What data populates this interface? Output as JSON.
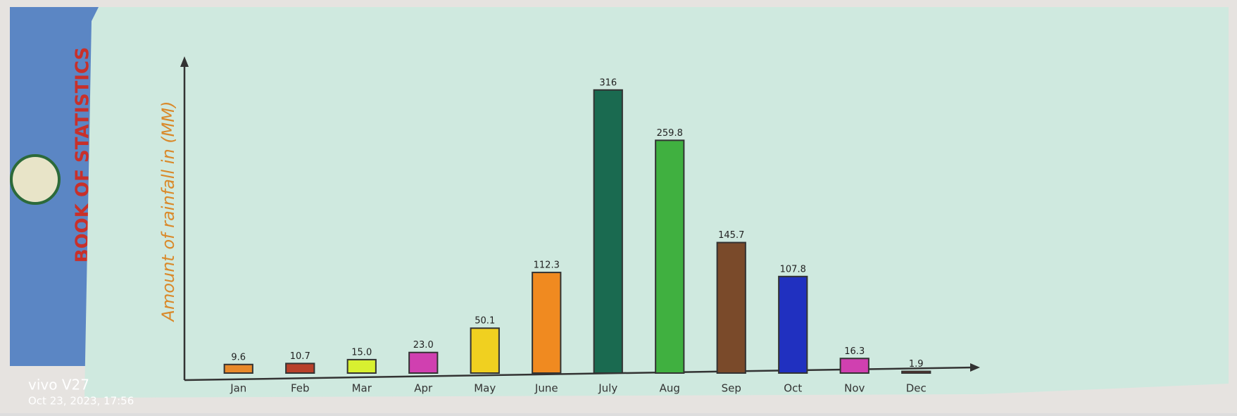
{
  "chart_data": {
    "type": "bar",
    "y_label": "Amount of rainfall in (MM)",
    "categories": [
      "Jan",
      "Feb",
      "Mar",
      "Apr",
      "May",
      "June",
      "July",
      "Aug",
      "Sep",
      "Oct",
      "Nov",
      "Dec"
    ],
    "values": [
      9.6,
      10.7,
      15.0,
      23.0,
      50.1,
      112.3,
      316,
      259.8,
      145.7,
      107.8,
      16.3,
      1.9
    ],
    "value_labels": [
      "9.6",
      "10.7",
      "15.0",
      "23.0",
      "50.1",
      "112.3",
      "316",
      "259.8",
      "145.7",
      "107.8",
      "16.3",
      "1.9"
    ],
    "colors": [
      "#e8892a",
      "#b8402a",
      "#d8f030",
      "#d040b0",
      "#f0d020",
      "#f08a20",
      "#1a6a50",
      "#40b040",
      "#7a4a2a",
      "#2030c0",
      "#d040b0",
      "#a03020"
    ],
    "ylim": [
      0,
      330
    ]
  },
  "background_book": "BOOK OF STATISTICS",
  "watermark": {
    "device": "vivo V27",
    "timestamp": "Oct 23, 2023, 17:56"
  }
}
